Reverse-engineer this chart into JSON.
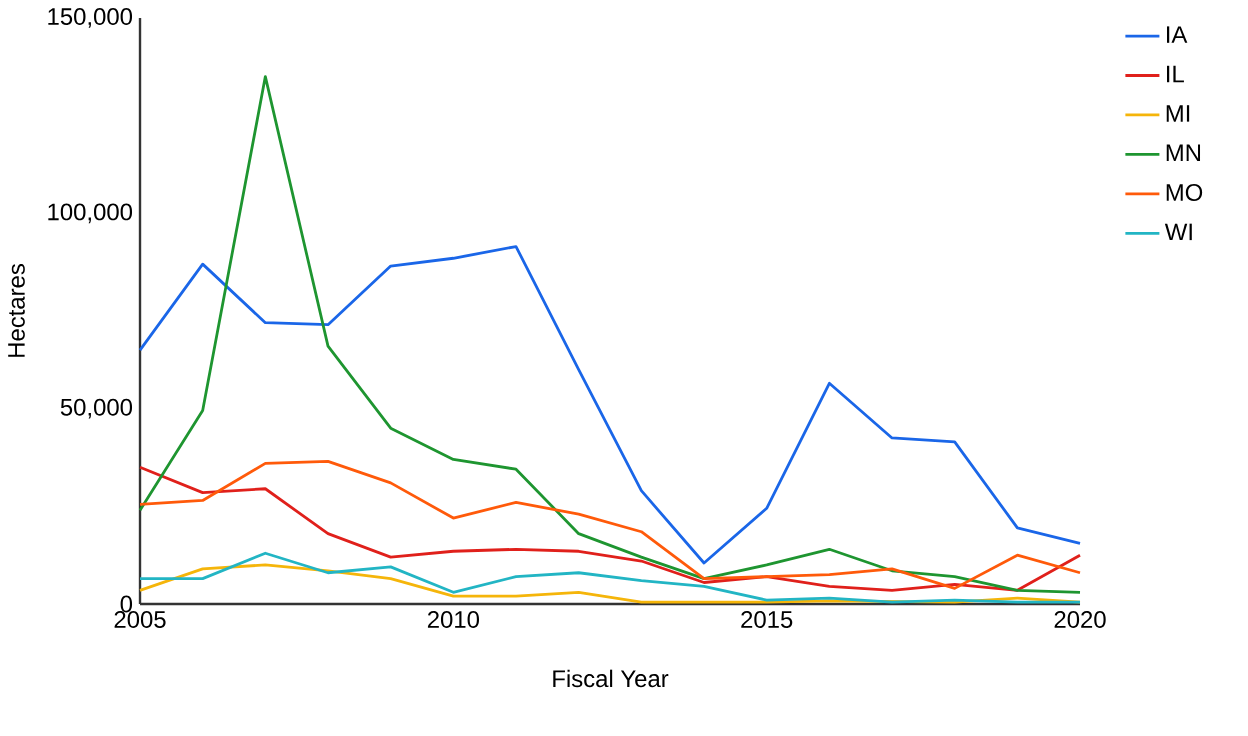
{
  "chart_data": {
    "type": "line",
    "xlabel": "Fiscal Year",
    "ylabel": "Hectares",
    "x": [
      2005,
      2006,
      2007,
      2008,
      2009,
      2010,
      2011,
      2012,
      2013,
      2014,
      2015,
      2016,
      2017,
      2018,
      2019,
      2020
    ],
    "xlim": [
      2005,
      2020
    ],
    "xticks": [
      2005,
      2010,
      2015,
      2020
    ],
    "ylim": [
      0,
      150000
    ],
    "yticks": [
      0,
      {
        "value": 50000,
        "label": "50,000"
      },
      {
        "value": 100000,
        "label": "100,000"
      },
      {
        "value": 150000,
        "label": "150,000"
      }
    ],
    "legend": "right",
    "grid": false,
    "series": [
      {
        "name": "IA",
        "color": "#1a66e8",
        "values": [
          65000,
          87000,
          72000,
          71500,
          86500,
          88500,
          91500,
          60000,
          29000,
          10500,
          24500,
          56500,
          42500,
          41500,
          19500,
          15500
        ]
      },
      {
        "name": "IL",
        "color": "#e0201b",
        "values": [
          35000,
          28500,
          29500,
          18000,
          12000,
          13500,
          14000,
          13500,
          11000,
          5500,
          7000,
          4500,
          3500,
          5000,
          3500,
          12500
        ]
      },
      {
        "name": "MI",
        "color": "#f5b50a",
        "values": [
          3500,
          9000,
          10000,
          8500,
          6500,
          2000,
          2000,
          3000,
          500,
          500,
          500,
          800,
          null,
          500,
          1500,
          500
        ]
      },
      {
        "name": "MN",
        "color": "#1e9530",
        "values": [
          24000,
          49500,
          135000,
          66000,
          45000,
          37000,
          34500,
          18000,
          12000,
          6500,
          10000,
          14000,
          8500,
          7000,
          3500,
          3000
        ]
      },
      {
        "name": "MO",
        "color": "#ff5a0a",
        "values": [
          25500,
          26500,
          36000,
          36500,
          31000,
          22000,
          26000,
          23000,
          18500,
          6500,
          7000,
          7500,
          9000,
          4000,
          12500,
          8000
        ]
      },
      {
        "name": "WI",
        "color": "#22b5c4",
        "values": [
          6500,
          6500,
          13000,
          8000,
          9500,
          3000,
          7000,
          8000,
          6000,
          4500,
          1000,
          1500,
          500,
          1000,
          500,
          500
        ]
      }
    ]
  }
}
